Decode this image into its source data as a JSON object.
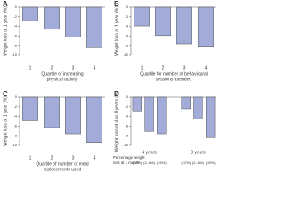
{
  "chart_data": [
    {
      "type": "bar",
      "panel": "A",
      "ylabel": "Weight loss at 1 year (%)",
      "xlabel": [
        "Quartile of increasing",
        "physical activity"
      ],
      "categories": [
        "1",
        "2",
        "3",
        "4"
      ],
      "values": [
        -2.8,
        -4.6,
        -6.2,
        -8.4
      ],
      "color": "#a3acd8",
      "ylim": [
        -10,
        0
      ],
      "yticks": [
        0,
        -2,
        -4,
        -6,
        -8,
        -10
      ]
    },
    {
      "type": "bar",
      "panel": "B",
      "ylabel": "Weight loss at 1 year (%)",
      "xlabel": [
        "Quartile for number of behavioural",
        "sessions attended"
      ],
      "categories": [
        "1",
        "2",
        "3",
        "4"
      ],
      "values": [
        -3.9,
        -5.9,
        -7.6,
        -8.3
      ],
      "color": "#a3acd8",
      "ylim": [
        -10,
        0
      ],
      "yticks": [
        0,
        -2,
        -4,
        -6,
        -8,
        -10
      ]
    },
    {
      "type": "bar",
      "panel": "C",
      "ylabel": "Weight loss at 1 year (%)",
      "xlabel": [
        "Quartile of number of meal",
        "replacements used"
      ],
      "categories": [
        "1",
        "2",
        "3",
        "4"
      ],
      "values": [
        -4.9,
        -6.3,
        -7.6,
        -9.4
      ],
      "color": "#a3acd8",
      "ylim": [
        -10,
        0
      ],
      "yticks": [
        0,
        -2,
        -4,
        -6,
        -8,
        -10
      ]
    },
    {
      "type": "bar",
      "panel": "D",
      "ylabel": "Weight loss at 4 or 8 years (%)",
      "xlabel": [
        "Percentage weight",
        "loss at 1 month"
      ],
      "group_labels": [
        "4 years",
        "8 years"
      ],
      "categories": [
        "(<2%)",
        "(2–6%)",
        "(>6%)",
        "(<2%)",
        "(2–6%)",
        "(>6%)"
      ],
      "values": [
        -3.0,
        -7.1,
        -7.6,
        -2.4,
        -4.5,
        -8.4
      ],
      "color": "#a3acd8",
      "ylim": [
        -10,
        0
      ],
      "yticks": [
        0,
        -2,
        -4,
        -6,
        -8,
        -10
      ]
    }
  ]
}
